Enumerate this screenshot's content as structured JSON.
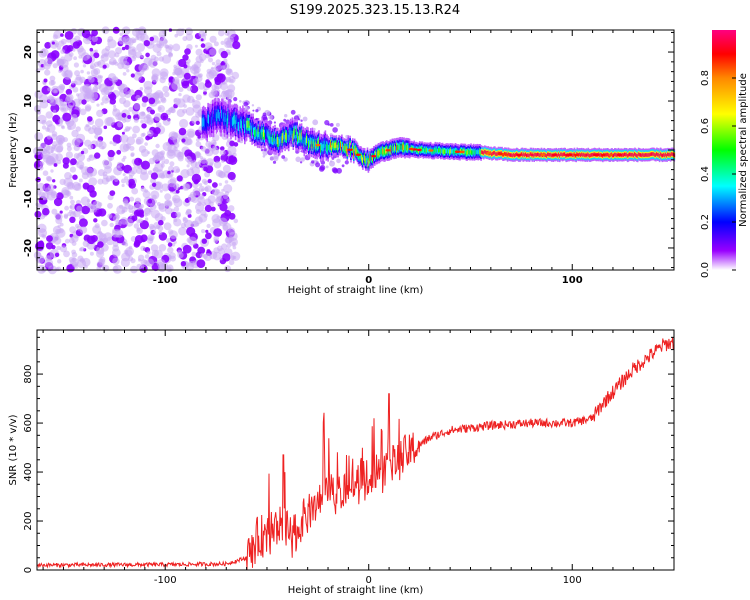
{
  "title": "S199.2025.323.15.13.R24",
  "chart_data": [
    {
      "type": "heatmap",
      "xlabel": "Height of straight line (km)",
      "ylabel": "Frequency (Hz)",
      "xlim": [
        -163,
        150
      ],
      "ylim": [
        -24.5,
        24.5
      ],
      "x_ticks": [
        -100,
        0,
        100
      ],
      "x_tick_labels": [
        "-100",
        "0",
        "100"
      ],
      "y_ticks": [
        -20,
        -10,
        0,
        10,
        20
      ],
      "y_tick_labels": [
        "-20",
        "-10",
        "0",
        "10",
        "20"
      ],
      "colorbar": {
        "label": "Normalized spectral amplitude",
        "range": [
          0,
          1
        ],
        "ticks": [
          0.0,
          0.2,
          0.4,
          0.6,
          0.8
        ],
        "tick_labels": [
          "0.0",
          "0.2",
          "0.4",
          "0.6",
          "0.8"
        ],
        "colors": [
          "#ffffff",
          "#9900ff",
          "#0000ff",
          "#00ffff",
          "#00ff00",
          "#ffff00",
          "#ff8800",
          "#ff0000",
          "#ff0080"
        ]
      },
      "noise_region_x": [
        -163,
        -65
      ],
      "signal_track": {
        "x": [
          -82,
          -75,
          -68,
          -60,
          -52,
          -45,
          -38,
          -32,
          -25,
          -18,
          -10,
          -5,
          0,
          5,
          10,
          15,
          25,
          40,
          55,
          70,
          90,
          110,
          130,
          150
        ],
        "frequency": [
          5,
          7,
          6,
          5,
          3,
          2,
          3.5,
          2,
          1,
          0.5,
          0.3,
          -1,
          -2,
          -0.5,
          0,
          0.5,
          0,
          -0.3,
          -0.5,
          -1,
          -1,
          -1,
          -1,
          -1
        ]
      }
    },
    {
      "type": "line",
      "xlabel": "Height of straight line (km)",
      "ylabel": "SNR (10 * v/v)",
      "xlim": [
        -163,
        150
      ],
      "ylim": [
        0,
        980
      ],
      "x_ticks": [
        -100,
        0,
        100
      ],
      "x_tick_labels": [
        "-100",
        "0",
        "100"
      ],
      "y_ticks": [
        0,
        200,
        400,
        600,
        800
      ],
      "y_tick_labels": [
        "0",
        "200",
        "400",
        "600",
        "800"
      ],
      "color": "#ee2222",
      "trend": {
        "x": [
          -163,
          -100,
          -70,
          -60,
          -55,
          -48,
          -42,
          -38,
          -30,
          -20,
          -10,
          0,
          10,
          20,
          30,
          40,
          60,
          80,
          100,
          110,
          115,
          130,
          145,
          150
        ],
        "y": [
          20,
          22,
          25,
          50,
          120,
          160,
          180,
          140,
          230,
          300,
          340,
          370,
          420,
          480,
          540,
          570,
          590,
          600,
          600,
          620,
          680,
          820,
          920,
          930
        ]
      },
      "spikes": [
        {
          "x": -42,
          "y": 470
        },
        {
          "x": -22,
          "y": 470
        },
        {
          "x": 10,
          "y": 720
        }
      ]
    }
  ]
}
